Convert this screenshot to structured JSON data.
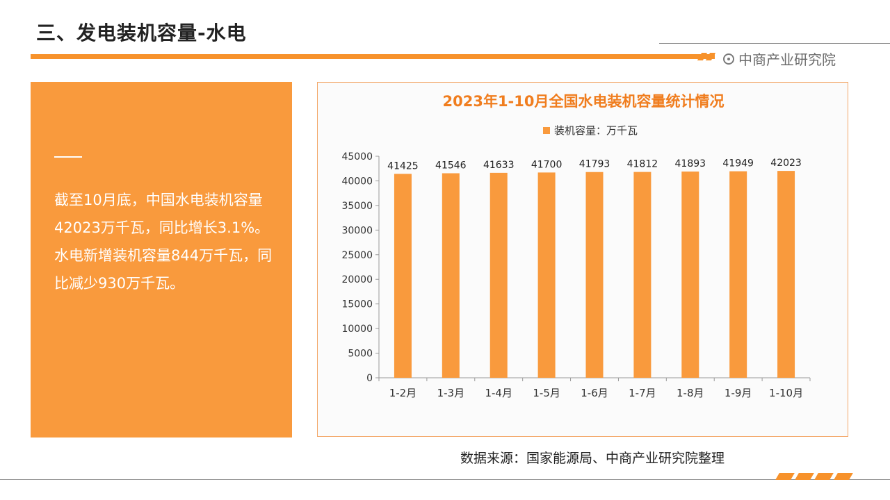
{
  "header": {
    "title": "三、发电装机容量-水电",
    "brand": "中商产业研究院"
  },
  "summary": {
    "text": "截至10月底，中国水电装机容量42023万千瓦，同比增长3.1%。水电新增装机容量844万千瓦，同比减少930万千瓦。"
  },
  "source": {
    "text": "数据来源：国家能源局、中商产业研究院整理"
  },
  "colors": {
    "accent": "#f7922b",
    "panel": "#f99a3d",
    "bar": "#f99a3d"
  },
  "chart_data": {
    "type": "bar",
    "title": "2023年1-10月全国水电装机容量统计情况",
    "legend": "top",
    "categories": [
      "1-2月",
      "1-3月",
      "1-4月",
      "1-5月",
      "1-6月",
      "1-7月",
      "1-8月",
      "1-9月",
      "1-10月"
    ],
    "series": [
      {
        "name": "装机容量：万千瓦",
        "values": [
          41425,
          41546,
          41633,
          41700,
          41793,
          41812,
          41893,
          41949,
          42023
        ]
      }
    ],
    "value_labels": [
      "41425",
      "41546",
      "41633",
      "41700",
      "41793",
      "41812",
      "41893",
      "41949",
      "42023"
    ],
    "ylim": [
      0,
      45000
    ],
    "yticks": [
      "0",
      "5000",
      "10000",
      "15000",
      "20000",
      "25000",
      "30000",
      "35000",
      "40000",
      "45000"
    ],
    "grid": false
  }
}
